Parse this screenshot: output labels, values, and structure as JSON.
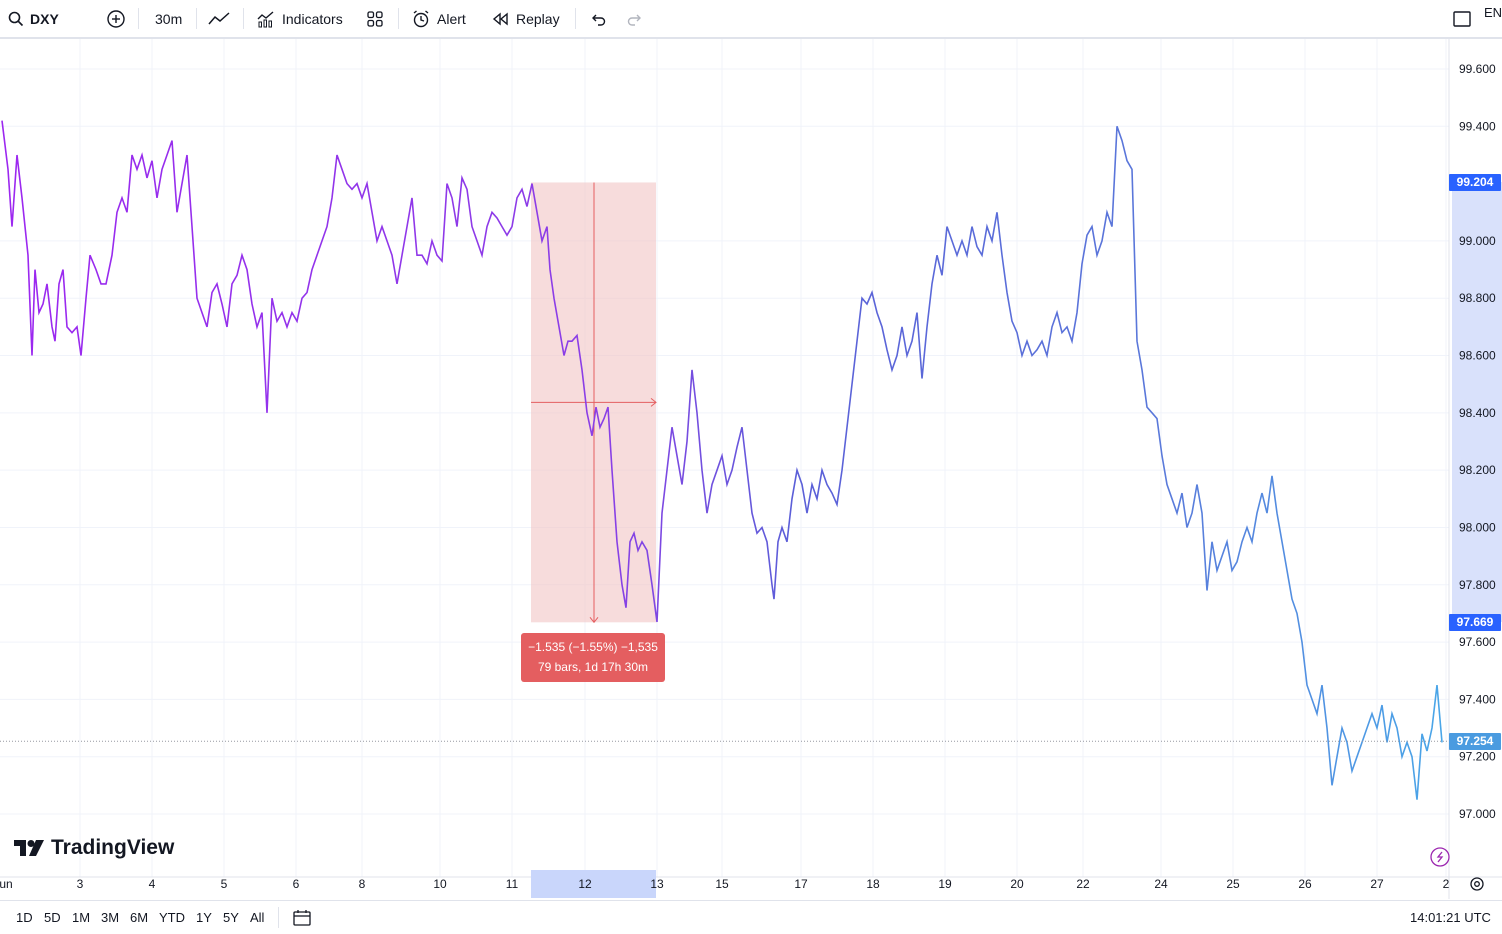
{
  "toolbar": {
    "symbol": "DXY",
    "interval": "30m",
    "indicators_label": "Indicators",
    "alert_label": "Alert",
    "replay_label": "Replay",
    "language": "EN"
  },
  "price_axis": {
    "ticks": [
      "99.600",
      "99.400",
      "99.000",
      "98.800",
      "98.600",
      "98.400",
      "98.200",
      "98.000",
      "97.800",
      "97.600",
      "97.400",
      "97.200",
      "97.000"
    ],
    "tags": {
      "high": "99.204",
      "low": "97.669",
      "last": "97.254"
    }
  },
  "time_axis": {
    "labels": [
      "un",
      "3",
      "4",
      "5",
      "6",
      "8",
      "10",
      "11",
      "12",
      "13",
      "15",
      "17",
      "18",
      "19",
      "20",
      "22",
      "24",
      "25",
      "26",
      "27",
      "2"
    ],
    "highlighted": "12"
  },
  "measure": {
    "line1": "−1.535 (−1.55%) −1,535",
    "line2": "79 bars, 1d 17h 30m"
  },
  "logo": {
    "text": "TradingView"
  },
  "bottom": {
    "ranges": [
      "1D",
      "5D",
      "1M",
      "3M",
      "6M",
      "YTD",
      "1Y",
      "5Y",
      "All"
    ],
    "clock": "14:01:21 UTC"
  },
  "chart_data": {
    "type": "line",
    "symbol": "DXY",
    "interval": "30m",
    "ylim": [
      97.0,
      99.6
    ],
    "points": [
      [
        0,
        99.42
      ],
      [
        6,
        99.25
      ],
      [
        10,
        99.05
      ],
      [
        15,
        99.3
      ],
      [
        20,
        99.15
      ],
      [
        26,
        98.95
      ],
      [
        30,
        98.6
      ],
      [
        33,
        98.9
      ],
      [
        37,
        98.75
      ],
      [
        41,
        98.78
      ],
      [
        45,
        98.85
      ],
      [
        50,
        98.7
      ],
      [
        53,
        98.65
      ],
      [
        57,
        98.85
      ],
      [
        61,
        98.9
      ],
      [
        65,
        98.7
      ],
      [
        70,
        98.68
      ],
      [
        75,
        98.7
      ],
      [
        79,
        98.6
      ],
      [
        84,
        98.8
      ],
      [
        88,
        98.95
      ],
      [
        94,
        98.9
      ],
      [
        99,
        98.85
      ],
      [
        104,
        98.85
      ],
      [
        110,
        98.95
      ],
      [
        115,
        99.1
      ],
      [
        120,
        99.15
      ],
      [
        125,
        99.1
      ],
      [
        130,
        99.3
      ],
      [
        135,
        99.25
      ],
      [
        140,
        99.3
      ],
      [
        145,
        99.22
      ],
      [
        150,
        99.28
      ],
      [
        155,
        99.15
      ],
      [
        160,
        99.25
      ],
      [
        165,
        99.3
      ],
      [
        170,
        99.35
      ],
      [
        175,
        99.1
      ],
      [
        180,
        99.2
      ],
      [
        185,
        99.3
      ],
      [
        190,
        99.05
      ],
      [
        195,
        98.8
      ],
      [
        200,
        98.75
      ],
      [
        205,
        98.7
      ],
      [
        210,
        98.82
      ],
      [
        215,
        98.85
      ],
      [
        220,
        98.78
      ],
      [
        225,
        98.7
      ],
      [
        230,
        98.85
      ],
      [
        235,
        98.88
      ],
      [
        240,
        98.95
      ],
      [
        245,
        98.9
      ],
      [
        250,
        98.78
      ],
      [
        255,
        98.7
      ],
      [
        260,
        98.75
      ],
      [
        265,
        98.4
      ],
      [
        270,
        98.8
      ],
      [
        275,
        98.72
      ],
      [
        280,
        98.75
      ],
      [
        285,
        98.7
      ],
      [
        290,
        98.75
      ],
      [
        295,
        98.72
      ],
      [
        300,
        98.8
      ],
      [
        305,
        98.82
      ],
      [
        310,
        98.9
      ],
      [
        315,
        98.95
      ],
      [
        320,
        99.0
      ],
      [
        325,
        99.05
      ],
      [
        330,
        99.15
      ],
      [
        335,
        99.3
      ],
      [
        340,
        99.25
      ],
      [
        345,
        99.2
      ],
      [
        350,
        99.18
      ],
      [
        355,
        99.2
      ],
      [
        360,
        99.15
      ],
      [
        365,
        99.2
      ],
      [
        370,
        99.1
      ],
      [
        375,
        99.0
      ],
      [
        380,
        99.05
      ],
      [
        385,
        99.0
      ],
      [
        390,
        98.95
      ],
      [
        395,
        98.85
      ],
      [
        400,
        98.95
      ],
      [
        405,
        99.05
      ],
      [
        410,
        99.15
      ],
      [
        415,
        98.95
      ],
      [
        420,
        98.95
      ],
      [
        425,
        98.92
      ],
      [
        430,
        99.0
      ],
      [
        435,
        98.95
      ],
      [
        440,
        98.93
      ],
      [
        445,
        99.2
      ],
      [
        450,
        99.15
      ],
      [
        455,
        99.05
      ],
      [
        460,
        99.22
      ],
      [
        465,
        99.18
      ],
      [
        470,
        99.05
      ],
      [
        475,
        99.0
      ],
      [
        480,
        98.95
      ],
      [
        485,
        99.05
      ],
      [
        490,
        99.1
      ],
      [
        495,
        99.08
      ],
      [
        500,
        99.05
      ],
      [
        505,
        99.02
      ],
      [
        510,
        99.05
      ],
      [
        515,
        99.15
      ],
      [
        520,
        99.18
      ],
      [
        525,
        99.12
      ],
      [
        530,
        99.2
      ],
      [
        535,
        99.1
      ],
      [
        540,
        99.0
      ],
      [
        545,
        99.05
      ],
      [
        548,
        98.9
      ],
      [
        552,
        98.8
      ],
      [
        557,
        98.7
      ],
      [
        562,
        98.6
      ],
      [
        566,
        98.65
      ],
      [
        570,
        98.65
      ],
      [
        575,
        98.67
      ],
      [
        580,
        98.55
      ],
      [
        585,
        98.4
      ],
      [
        590,
        98.32
      ],
      [
        594,
        98.42
      ],
      [
        598,
        98.35
      ],
      [
        602,
        98.38
      ],
      [
        606,
        98.42
      ],
      [
        610,
        98.2
      ],
      [
        615,
        97.95
      ],
      [
        620,
        97.8
      ],
      [
        624,
        97.72
      ],
      [
        628,
        97.95
      ],
      [
        632,
        97.98
      ],
      [
        636,
        97.92
      ],
      [
        640,
        97.95
      ],
      [
        645,
        97.92
      ],
      [
        650,
        97.8
      ],
      [
        655,
        97.67
      ],
      [
        660,
        98.05
      ],
      [
        665,
        98.2
      ],
      [
        670,
        98.35
      ],
      [
        675,
        98.25
      ],
      [
        680,
        98.15
      ],
      [
        685,
        98.3
      ],
      [
        690,
        98.55
      ],
      [
        695,
        98.4
      ],
      [
        700,
        98.2
      ],
      [
        705,
        98.05
      ],
      [
        710,
        98.15
      ],
      [
        715,
        98.2
      ],
      [
        720,
        98.25
      ],
      [
        725,
        98.15
      ],
      [
        730,
        98.2
      ],
      [
        735,
        98.28
      ],
      [
        740,
        98.35
      ],
      [
        745,
        98.2
      ],
      [
        750,
        98.05
      ],
      [
        755,
        97.98
      ],
      [
        760,
        98.0
      ],
      [
        765,
        97.95
      ],
      [
        770,
        97.8
      ],
      [
        772,
        97.75
      ],
      [
        776,
        97.95
      ],
      [
        780,
        98.0
      ],
      [
        785,
        97.95
      ],
      [
        790,
        98.1
      ],
      [
        795,
        98.2
      ],
      [
        800,
        98.15
      ],
      [
        805,
        98.05
      ],
      [
        810,
        98.15
      ],
      [
        815,
        98.1
      ],
      [
        820,
        98.2
      ],
      [
        825,
        98.15
      ],
      [
        830,
        98.12
      ],
      [
        835,
        98.08
      ],
      [
        840,
        98.2
      ],
      [
        845,
        98.35
      ],
      [
        850,
        98.5
      ],
      [
        855,
        98.65
      ],
      [
        860,
        98.8
      ],
      [
        865,
        98.78
      ],
      [
        870,
        98.82
      ],
      [
        875,
        98.75
      ],
      [
        880,
        98.7
      ],
      [
        885,
        98.62
      ],
      [
        890,
        98.55
      ],
      [
        895,
        98.6
      ],
      [
        900,
        98.7
      ],
      [
        905,
        98.6
      ],
      [
        910,
        98.65
      ],
      [
        915,
        98.75
      ],
      [
        920,
        98.52
      ],
      [
        925,
        98.7
      ],
      [
        930,
        98.85
      ],
      [
        935,
        98.95
      ],
      [
        940,
        98.88
      ],
      [
        945,
        99.05
      ],
      [
        950,
        99.0
      ],
      [
        955,
        98.95
      ],
      [
        960,
        99.0
      ],
      [
        965,
        98.95
      ],
      [
        970,
        99.05
      ],
      [
        975,
        98.98
      ],
      [
        980,
        98.95
      ],
      [
        985,
        99.05
      ],
      [
        990,
        99.0
      ],
      [
        995,
        99.1
      ],
      [
        1000,
        98.95
      ],
      [
        1005,
        98.82
      ],
      [
        1010,
        98.72
      ],
      [
        1015,
        98.68
      ],
      [
        1020,
        98.6
      ],
      [
        1025,
        98.65
      ],
      [
        1030,
        98.6
      ],
      [
        1035,
        98.62
      ],
      [
        1040,
        98.65
      ],
      [
        1045,
        98.6
      ],
      [
        1050,
        98.7
      ],
      [
        1055,
        98.75
      ],
      [
        1060,
        98.68
      ],
      [
        1065,
        98.7
      ],
      [
        1070,
        98.65
      ],
      [
        1075,
        98.75
      ],
      [
        1080,
        98.92
      ],
      [
        1085,
        99.02
      ],
      [
        1090,
        99.05
      ],
      [
        1095,
        98.95
      ],
      [
        1100,
        99.0
      ],
      [
        1105,
        99.1
      ],
      [
        1110,
        99.05
      ],
      [
        1115,
        99.4
      ],
      [
        1120,
        99.35
      ],
      [
        1125,
        99.28
      ],
      [
        1130,
        99.25
      ],
      [
        1135,
        98.65
      ],
      [
        1140,
        98.55
      ],
      [
        1145,
        98.42
      ],
      [
        1150,
        98.4
      ],
      [
        1155,
        98.38
      ],
      [
        1160,
        98.25
      ],
      [
        1165,
        98.15
      ],
      [
        1170,
        98.1
      ],
      [
        1175,
        98.05
      ],
      [
        1180,
        98.12
      ],
      [
        1185,
        98.0
      ],
      [
        1190,
        98.05
      ],
      [
        1195,
        98.15
      ],
      [
        1200,
        98.05
      ],
      [
        1205,
        97.78
      ],
      [
        1210,
        97.95
      ],
      [
        1215,
        97.85
      ],
      [
        1220,
        97.9
      ],
      [
        1225,
        97.95
      ],
      [
        1230,
        97.85
      ],
      [
        1235,
        97.88
      ],
      [
        1240,
        97.95
      ],
      [
        1245,
        98.0
      ],
      [
        1250,
        97.95
      ],
      [
        1255,
        98.05
      ],
      [
        1260,
        98.12
      ],
      [
        1265,
        98.05
      ],
      [
        1270,
        98.18
      ],
      [
        1275,
        98.05
      ],
      [
        1280,
        97.95
      ],
      [
        1285,
        97.85
      ],
      [
        1290,
        97.75
      ],
      [
        1295,
        97.7
      ],
      [
        1300,
        97.6
      ],
      [
        1305,
        97.45
      ],
      [
        1310,
        97.4
      ],
      [
        1315,
        97.35
      ],
      [
        1320,
        97.45
      ],
      [
        1325,
        97.3
      ],
      [
        1330,
        97.1
      ],
      [
        1335,
        97.2
      ],
      [
        1340,
        97.3
      ],
      [
        1345,
        97.25
      ],
      [
        1350,
        97.15
      ],
      [
        1355,
        97.2
      ],
      [
        1360,
        97.25
      ],
      [
        1365,
        97.3
      ],
      [
        1370,
        97.35
      ],
      [
        1375,
        97.3
      ],
      [
        1380,
        97.38
      ],
      [
        1385,
        97.25
      ],
      [
        1390,
        97.35
      ],
      [
        1395,
        97.3
      ],
      [
        1400,
        97.2
      ],
      [
        1405,
        97.25
      ],
      [
        1410,
        97.2
      ],
      [
        1415,
        97.05
      ],
      [
        1420,
        97.28
      ],
      [
        1425,
        97.22
      ],
      [
        1430,
        97.3
      ],
      [
        1435,
        97.45
      ],
      [
        1440,
        97.25
      ]
    ],
    "measure_range": {
      "from_price": 99.204,
      "to_price": 97.669,
      "change": -1.535,
      "change_pct": -1.55,
      "bars": 79,
      "duration": "1d 17h 30m"
    },
    "last_price": 97.254,
    "grid": true,
    "colors": {
      "line_start": "#9c27f0",
      "line_mid": "#5b5fd8",
      "line_end": "#4aa6e8",
      "measure_fill": "#f2c4c4",
      "measure_tag": "#e45e60",
      "price_tag": "#2962ff",
      "last_tag": "#4a9be0"
    }
  }
}
